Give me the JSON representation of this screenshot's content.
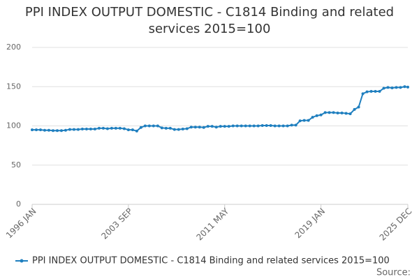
{
  "chart_data": {
    "type": "line",
    "title": "PPI INDEX OUTPUT DOMESTIC - C1814 Binding and related services 2015=100",
    "x": [
      "1996 JAN",
      "1996 MAY",
      "1996 SEP",
      "1997 JAN",
      "1997 MAY",
      "1997 SEP",
      "1998 JAN",
      "1998 MAY",
      "1998 SEP",
      "1999 JAN",
      "1999 MAY",
      "1999 SEP",
      "2000 JAN",
      "2000 MAY",
      "2000 SEP",
      "2001 JAN",
      "2001 MAY",
      "2001 SEP",
      "2002 JAN",
      "2002 MAY",
      "2002 SEP",
      "2003 JAN",
      "2003 MAY",
      "2003 SEP",
      "2004 JAN",
      "2004 MAY",
      "2004 SEP",
      "2005 JAN",
      "2005 MAY",
      "2005 SEP",
      "2006 JAN",
      "2006 MAY",
      "2006 SEP",
      "2007 JAN",
      "2007 MAY",
      "2007 SEP",
      "2008 JAN",
      "2008 MAY",
      "2008 SEP",
      "2009 JAN",
      "2009 MAY",
      "2009 SEP",
      "2010 JAN",
      "2010 MAY",
      "2010 SEP",
      "2011 JAN",
      "2011 MAY",
      "2011 SEP",
      "2012 JAN",
      "2012 MAY",
      "2012 SEP",
      "2013 JAN",
      "2013 MAY",
      "2013 SEP",
      "2014 JAN",
      "2014 MAY",
      "2014 SEP",
      "2015 JAN",
      "2015 MAY",
      "2015 SEP",
      "2016 JAN",
      "2016 MAY",
      "2016 SEP",
      "2017 JAN",
      "2017 MAY",
      "2017 SEP",
      "2018 JAN",
      "2018 MAY",
      "2018 SEP",
      "2019 JAN",
      "2019 MAY",
      "2019 SEP",
      "2020 JAN",
      "2020 MAY",
      "2020 SEP",
      "2021 JAN",
      "2021 MAY",
      "2021 SEP",
      "2022 JAN",
      "2022 MAY",
      "2022 SEP",
      "2023 JAN",
      "2023 MAY",
      "2023 SEP",
      "2024 JAN",
      "2024 MAY",
      "2024 SEP",
      "2025 JAN",
      "2025 MAY",
      "2025 SEP",
      "2025 DEC"
    ],
    "series": [
      {
        "name": "PPI INDEX OUTPUT DOMESTIC - C1814 Binding and related services 2015=100",
        "color": "#1f7fbf",
        "values": [
          95,
          95,
          95,
          94.5,
          94.5,
          94,
          94,
          94,
          94.5,
          95.5,
          95.5,
          95.5,
          96,
          96,
          96,
          96,
          97,
          97,
          96.5,
          97,
          97,
          97,
          96.5,
          95,
          95,
          93.5,
          98,
          100,
          100,
          100,
          100,
          97.5,
          97,
          97,
          95.5,
          95.5,
          96,
          96.5,
          98.5,
          98.5,
          98.5,
          98,
          99.5,
          99.5,
          98.5,
          99.5,
          99.5,
          99.5,
          100,
          100,
          100,
          100,
          100,
          100,
          100,
          100.5,
          100.5,
          100.5,
          100,
          100,
          100,
          100,
          101,
          101,
          106.5,
          107,
          107,
          111,
          113,
          114,
          117,
          117,
          117,
          116.5,
          116.5,
          116,
          115.5,
          121,
          124,
          141,
          143.5,
          144,
          144,
          144,
          148,
          149,
          148.5,
          149,
          149,
          150,
          149.5
        ]
      }
    ],
    "xlim": [
      "1996 JAN",
      "2025 DEC"
    ],
    "xticks": [
      "1996 JAN",
      "2003 SEP",
      "2011 MAY",
      "2019 JAN",
      "2025 DEC"
    ],
    "ylim": [
      0,
      200
    ],
    "yticks": [
      0,
      50,
      100,
      150,
      200
    ],
    "grid": true,
    "source": "Source:"
  }
}
